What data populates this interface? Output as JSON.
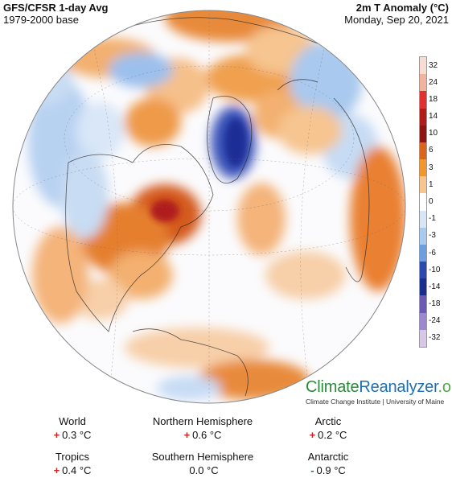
{
  "header": {
    "left_title": "GFS/CFSR 1-day Avg",
    "left_subtitle": "1979-2000 base",
    "right_title": "2m T Anomaly (°C)",
    "right_date": "Monday, Sep 20, 2021"
  },
  "legend": {
    "labels": [
      "32",
      "24",
      "18",
      "14",
      "10",
      "6",
      "3",
      "1",
      "0",
      "-1",
      "-3",
      "-6",
      "-10",
      "-14",
      "-18",
      "-24",
      "-32"
    ],
    "colors": [
      "#f6dcd3",
      "#f2b2a0",
      "#e03030",
      "#b01c1c",
      "#8c1414",
      "#d9641a",
      "#f2962e",
      "#f7c590",
      "#ffffff",
      "#d6e6f7",
      "#a9c9ee",
      "#6d9fe0",
      "#2a48b0",
      "#1a2c8c",
      "#6a5ab4",
      "#9c88cc",
      "#d8c8e8"
    ]
  },
  "brand": {
    "name_a": "Climate",
    "name_b": "Reanalyzer",
    "name_c": ".org",
    "sub": "Climate Change Institute | University of Maine"
  },
  "stats": [
    {
      "name": "World",
      "sign": "+",
      "value": "0.3 °C"
    },
    {
      "name": "Northern Hemisphere",
      "sign": "+",
      "value": "0.6 °C"
    },
    {
      "name": "Arctic",
      "sign": "+",
      "value": "0.2 °C"
    },
    {
      "name": "Tropics",
      "sign": "+",
      "value": "0.4 °C"
    },
    {
      "name": "Southern Hemisphere",
      "sign": "",
      "value": "0.0 °C"
    },
    {
      "name": "Antarctic",
      "sign": "-",
      "value": "0.9 °C"
    }
  ]
}
